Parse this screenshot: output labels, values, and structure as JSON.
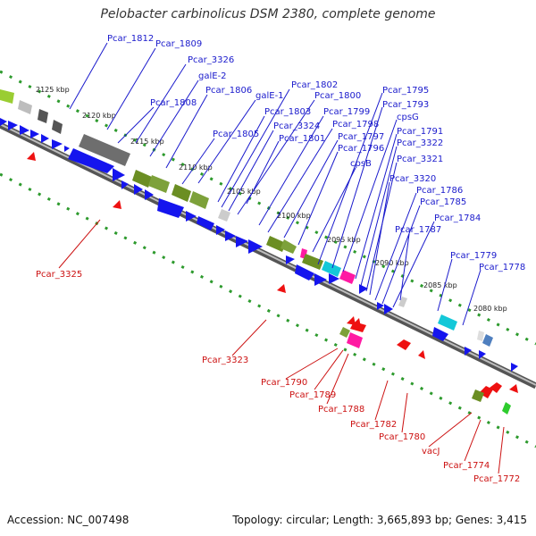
{
  "title": "Pelobacter carbinolicus DSM 2380, complete genome",
  "footer": {
    "accession": "Accession: NC_007498",
    "summary": "Topology: circular; Length: 3,665,893 bp; Genes: 3,415"
  },
  "colors": {
    "forward_label": "#1a1acc",
    "reverse_label": "#cc1111",
    "backbone": "#7a7a7a",
    "tick": "#2d9a2d",
    "blue_gene": "#1515ee",
    "red_gene": "#ee1111"
  },
  "scale_ticks": [
    "2125 kbp",
    "2120 kbp",
    "2115 kbp",
    "2110 kbp",
    "2105 kbp",
    "2100 kbp",
    "2095 kbp",
    "2090 kbp",
    "2085 kbp",
    "2080 kbp"
  ],
  "forward_labels": [
    "Pcar_1812",
    "Pcar_1809",
    "Pcar_3326",
    "galE-2",
    "Pcar_1808",
    "Pcar_1806",
    "galE-1",
    "Pcar_1802",
    "Pcar_1800",
    "Pcar_1803",
    "Pcar_1799",
    "Pcar_1805",
    "Pcar_3324",
    "Pcar_1801",
    "Pcar_1798",
    "Pcar_1797",
    "Pcar_1796",
    "cpsB",
    "Pcar_1795",
    "Pcar_1793",
    "cpsG",
    "Pcar_1791",
    "Pcar_3322",
    "Pcar_3321",
    "Pcar_3320",
    "Pcar_1786",
    "Pcar_1785",
    "Pcar_1784",
    "Pcar_1787",
    "Pcar_1779",
    "Pcar_1778"
  ],
  "reverse_labels": [
    "Pcar_3325",
    "Pcar_3323",
    "Pcar_1790",
    "Pcar_1789",
    "Pcar_1788",
    "Pcar_1782",
    "Pcar_1780",
    "vacJ",
    "Pcar_1774",
    "Pcar_1772"
  ]
}
